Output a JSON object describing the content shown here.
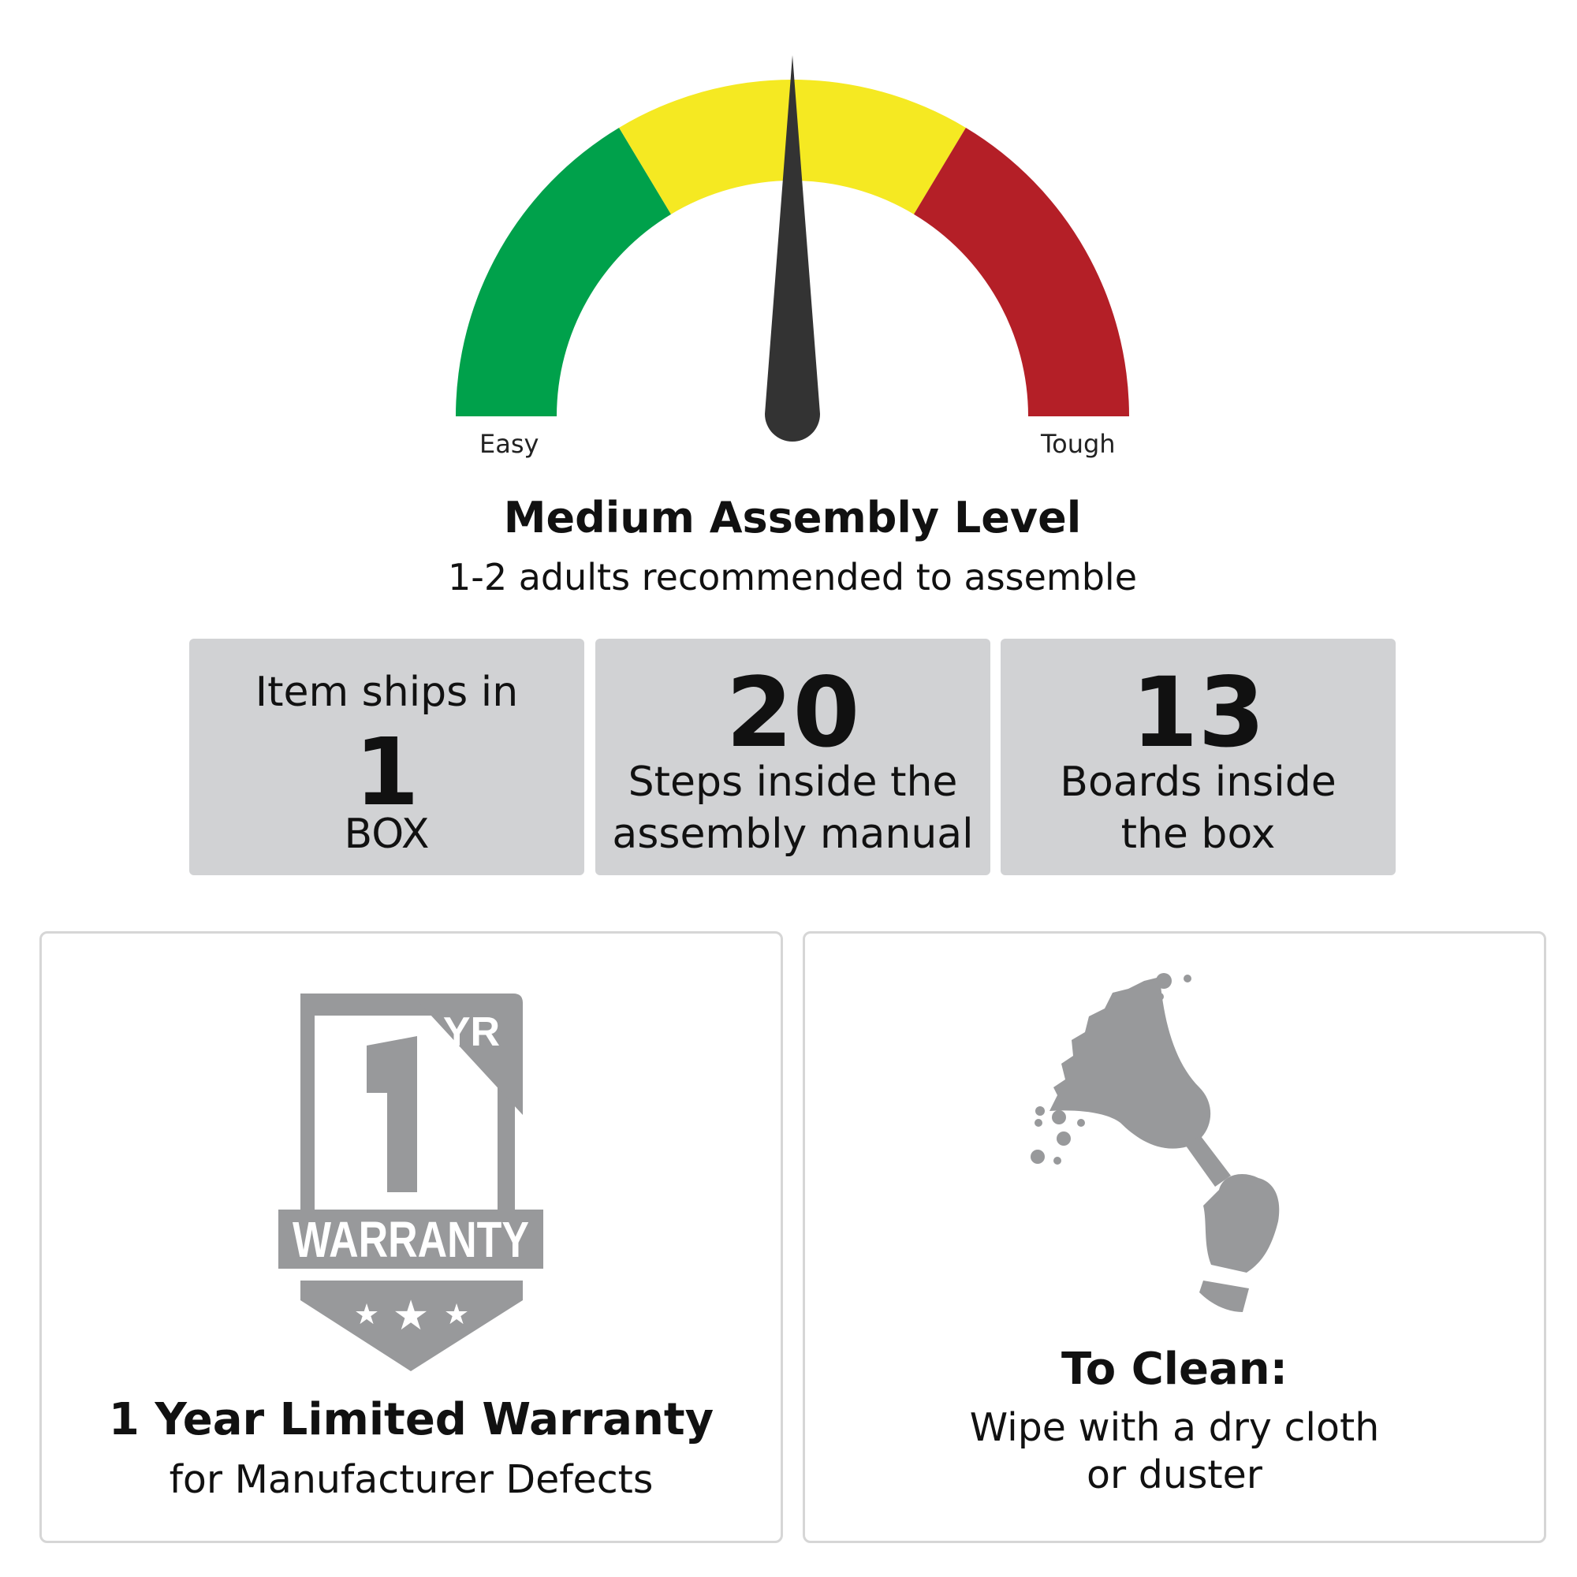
{
  "gauge": {
    "min_label": "Easy",
    "max_label": "Tough",
    "value_fraction": 0.5,
    "colors": {
      "easy": "#00a14b",
      "medium": "#f5e922",
      "tough": "#b41f27",
      "needle": "#333333"
    }
  },
  "assembly": {
    "title": "Medium Assembly Level",
    "subtitle": "1-2 adults recommended to assemble"
  },
  "stats": [
    {
      "top": "Item ships in",
      "value": "1",
      "bottom": "BOX"
    },
    {
      "value": "20",
      "line1": "Steps inside the",
      "line2": "assembly manual"
    },
    {
      "value": "13",
      "line1": "Boards inside",
      "line2": "the box"
    }
  ],
  "warranty": {
    "badge_number": "1",
    "badge_unit": "YR",
    "badge_text": "WARRANTY",
    "title": "1 Year Limited Warranty",
    "subtitle": "for Manufacturer Defects"
  },
  "cleaning": {
    "title": "To Clean:",
    "line1": "Wipe with a dry cloth",
    "line2": "or duster"
  },
  "icon_color": "#98999b"
}
